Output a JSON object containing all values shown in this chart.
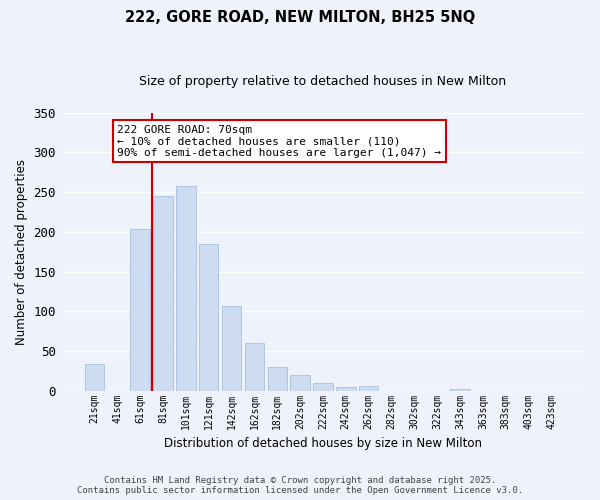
{
  "title": "222, GORE ROAD, NEW MILTON, BH25 5NQ",
  "subtitle": "Size of property relative to detached houses in New Milton",
  "xlabel": "Distribution of detached houses by size in New Milton",
  "ylabel": "Number of detached properties",
  "bar_labels": [
    "21sqm",
    "41sqm",
    "61sqm",
    "81sqm",
    "101sqm",
    "121sqm",
    "142sqm",
    "162sqm",
    "182sqm",
    "202sqm",
    "222sqm",
    "242sqm",
    "262sqm",
    "282sqm",
    "302sqm",
    "322sqm",
    "343sqm",
    "363sqm",
    "383sqm",
    "403sqm",
    "423sqm"
  ],
  "bar_values": [
    34,
    0,
    204,
    245,
    258,
    185,
    106,
    60,
    30,
    20,
    10,
    4,
    6,
    0,
    0,
    0,
    2,
    0,
    0,
    0,
    0
  ],
  "bar_color": "#cddcf0",
  "bar_edge_color": "#a8c0dd",
  "vline_color": "#cc0000",
  "ylim": [
    0,
    350
  ],
  "yticks": [
    0,
    50,
    100,
    150,
    200,
    250,
    300,
    350
  ],
  "annotation_title": "222 GORE ROAD: 70sqm",
  "annotation_line1": "← 10% of detached houses are smaller (110)",
  "annotation_line2": "90% of semi-detached houses are larger (1,047) →",
  "annotation_box_facecolor": "#ffffff",
  "annotation_box_edgecolor": "#cc0000",
  "background_color": "#eef2fb",
  "grid_color": "#ffffff",
  "footer_line1": "Contains HM Land Registry data © Crown copyright and database right 2025.",
  "footer_line2": "Contains public sector information licensed under the Open Government Licence v3.0."
}
